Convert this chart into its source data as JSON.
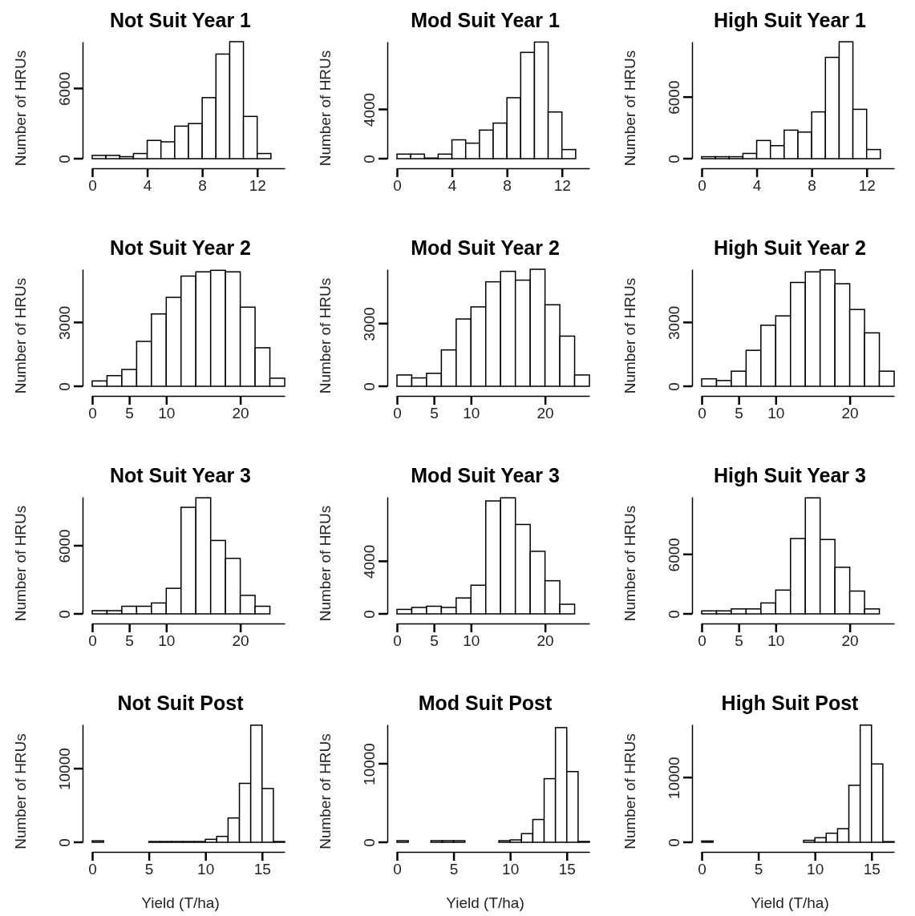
{
  "chart_data": [
    {
      "type": "histogram",
      "title": "Not Suit Year 1",
      "ylabel": "Number of HRUs",
      "color": "#ffffff",
      "bins": [
        0,
        1,
        2,
        3,
        4,
        5,
        6,
        7,
        8,
        9,
        10,
        11,
        12,
        13
      ],
      "values": [
        280,
        280,
        170,
        440,
        1560,
        1440,
        2780,
        3000,
        5220,
        8940,
        10000,
        3610,
        440
      ],
      "xlim": [
        0,
        14
      ],
      "xticks": [
        0,
        4,
        8,
        12
      ],
      "ylim": [
        0,
        10000
      ],
      "yticks": [
        0,
        6000
      ]
    },
    {
      "type": "histogram",
      "title": "Mod Suit Year 1",
      "ylabel": "Number of HRUs",
      "color": "#ffffff",
      "bins": [
        0,
        1,
        2,
        3,
        4,
        5,
        6,
        7,
        8,
        9,
        10,
        11,
        12,
        13
      ],
      "values": [
        370,
        370,
        50,
        370,
        1530,
        1260,
        2320,
        2890,
        4950,
        8630,
        9470,
        3790,
        740
      ],
      "xlim": [
        0,
        14
      ],
      "xticks": [
        0,
        4,
        8,
        12
      ],
      "ylim": [
        0,
        9500
      ],
      "yticks": [
        0,
        4000
      ]
    },
    {
      "type": "histogram",
      "title": "High Suit Year 1",
      "ylabel": "Number of HRUs",
      "color": "#ffffff",
      "bins": [
        0,
        1,
        2,
        3,
        4,
        5,
        6,
        7,
        8,
        9,
        10,
        11,
        12,
        13
      ],
      "values": [
        190,
        190,
        190,
        510,
        1770,
        1270,
        2780,
        2590,
        4560,
        9870,
        11390,
        4810,
        890
      ],
      "xlim": [
        0,
        14
      ],
      "xticks": [
        0,
        4,
        8,
        12
      ],
      "ylim": [
        0,
        11400
      ],
      "yticks": [
        0,
        6000
      ]
    },
    {
      "type": "histogram",
      "title": "Not Suit Year 2",
      "ylabel": "Number of HRUs",
      "color": "#ffffff",
      "bins": [
        0,
        2,
        4,
        6,
        8,
        10,
        12,
        14,
        16,
        18,
        20,
        22,
        24,
        26
      ],
      "values": [
        250,
        500,
        790,
        2110,
        3400,
        4180,
        5180,
        5380,
        5450,
        5380,
        3720,
        1810,
        380
      ],
      "xlim": [
        0,
        26
      ],
      "xticks": [
        0,
        5,
        10,
        20
      ],
      "ylim": [
        0,
        5500
      ],
      "yticks": [
        0,
        3000
      ]
    },
    {
      "type": "histogram",
      "title": "Mod Suit Year 2",
      "ylabel": "Number of HRUs",
      "color": "#ffffff",
      "bins": [
        0,
        2,
        4,
        6,
        8,
        10,
        12,
        14,
        16,
        18,
        20,
        22,
        24,
        26
      ],
      "values": [
        540,
        400,
        620,
        1740,
        3220,
        3800,
        5000,
        5500,
        5080,
        5600,
        3900,
        2400,
        540
      ],
      "xlim": [
        0,
        26
      ],
      "xticks": [
        0,
        5,
        10,
        20
      ],
      "ylim": [
        0,
        5600
      ],
      "yticks": [
        0,
        3000
      ]
    },
    {
      "type": "histogram",
      "title": "High Suit Year 2",
      "ylabel": "Number of HRUs",
      "color": "#ffffff",
      "bins": [
        0,
        2,
        4,
        6,
        8,
        10,
        12,
        14,
        16,
        18,
        20,
        22,
        24,
        26
      ],
      "values": [
        350,
        270,
        710,
        1690,
        2870,
        3310,
        4880,
        5380,
        5470,
        4820,
        3610,
        2510,
        710
      ],
      "xlim": [
        0,
        26
      ],
      "xticks": [
        0,
        5,
        10,
        20
      ],
      "ylim": [
        0,
        5500
      ],
      "yticks": [
        0,
        3000
      ]
    },
    {
      "type": "histogram",
      "title": "Not Suit Year 3",
      "ylabel": "Number of HRUs",
      "color": "#ffffff",
      "bins": [
        0,
        2,
        4,
        6,
        8,
        10,
        12,
        14,
        16,
        18,
        20,
        22,
        24
      ],
      "values": [
        280,
        280,
        670,
        670,
        960,
        2250,
        9380,
        10220,
        6460,
        4890,
        1630,
        670
      ],
      "xlim": [
        0,
        26
      ],
      "xticks": [
        0,
        5,
        10,
        20
      ],
      "ylim": [
        0,
        10300
      ],
      "yticks": [
        0,
        6000
      ]
    },
    {
      "type": "histogram",
      "title": "Mod Suit Year 3",
      "ylabel": "Number of HRUs",
      "color": "#ffffff",
      "bins": [
        0,
        2,
        4,
        6,
        8,
        10,
        12,
        14,
        16,
        18,
        20,
        22,
        24
      ],
      "values": [
        340,
        490,
        580,
        490,
        1210,
        2180,
        8590,
        8830,
        6800,
        4760,
        2520,
        730
      ],
      "xlim": [
        0,
        26
      ],
      "xticks": [
        0,
        5,
        10,
        20
      ],
      "ylim": [
        0,
        8900
      ],
      "yticks": [
        0,
        4000
      ]
    },
    {
      "type": "histogram",
      "title": "High Suit Year 3",
      "ylabel": "Number of HRUs",
      "color": "#ffffff",
      "bins": [
        0,
        2,
        4,
        6,
        8,
        10,
        12,
        14,
        16,
        18,
        20,
        22,
        24
      ],
      "values": [
        300,
        300,
        500,
        500,
        1100,
        2400,
        7600,
        11700,
        7500,
        4700,
        2300,
        500
      ],
      "xlim": [
        0,
        26
      ],
      "xticks": [
        0,
        5,
        10,
        20
      ],
      "ylim": [
        0,
        11800
      ],
      "yticks": [
        0,
        6000
      ]
    },
    {
      "type": "histogram",
      "title": "Not Suit Post",
      "ylabel": "Number of HRUs",
      "xlabel": "Yield (T/ha)",
      "color": "#ffffff",
      "bins": [
        0,
        1,
        2,
        3,
        4,
        5,
        6,
        7,
        8,
        9,
        10,
        11,
        12,
        13,
        14,
        15,
        16,
        17
      ],
      "values": [
        200,
        0,
        0,
        0,
        0,
        100,
        100,
        100,
        100,
        100,
        400,
        800,
        3300,
        8000,
        15900,
        7300,
        100
      ],
      "xlim": [
        0,
        17
      ],
      "xticks": [
        0,
        5,
        10,
        15
      ],
      "ylim": [
        0,
        16000
      ],
      "yticks": [
        0,
        10000
      ]
    },
    {
      "type": "histogram",
      "title": "Mod Suit Post",
      "ylabel": "Number of HRUs",
      "xlabel": "Yield (T/ha)",
      "color": "#ffffff",
      "bins": [
        0,
        1,
        2,
        3,
        4,
        5,
        6,
        7,
        8,
        9,
        10,
        11,
        12,
        13,
        14,
        15,
        16,
        17
      ],
      "values": [
        200,
        0,
        0,
        200,
        200,
        200,
        0,
        0,
        0,
        200,
        300,
        1100,
        2900,
        8100,
        14600,
        9000,
        100
      ],
      "xlim": [
        0,
        17
      ],
      "xticks": [
        0,
        5,
        10,
        15
      ],
      "ylim": [
        0,
        15000
      ],
      "yticks": [
        0,
        10000
      ]
    },
    {
      "type": "histogram",
      "title": "High Suit Post",
      "ylabel": "Number of HRUs",
      "xlabel": "Yield (T/ha)",
      "color": "#ffffff",
      "bins": [
        0,
        1,
        2,
        3,
        4,
        5,
        6,
        7,
        8,
        9,
        10,
        11,
        12,
        13,
        14,
        15,
        16,
        17
      ],
      "values": [
        200,
        0,
        0,
        0,
        0,
        0,
        0,
        0,
        0,
        300,
        700,
        1400,
        2100,
        8800,
        18100,
        12100,
        100
      ],
      "xlim": [
        0,
        17
      ],
      "xticks": [
        0,
        5,
        10,
        15
      ],
      "ylim": [
        0,
        18200
      ],
      "yticks": [
        0,
        10000
      ]
    }
  ]
}
